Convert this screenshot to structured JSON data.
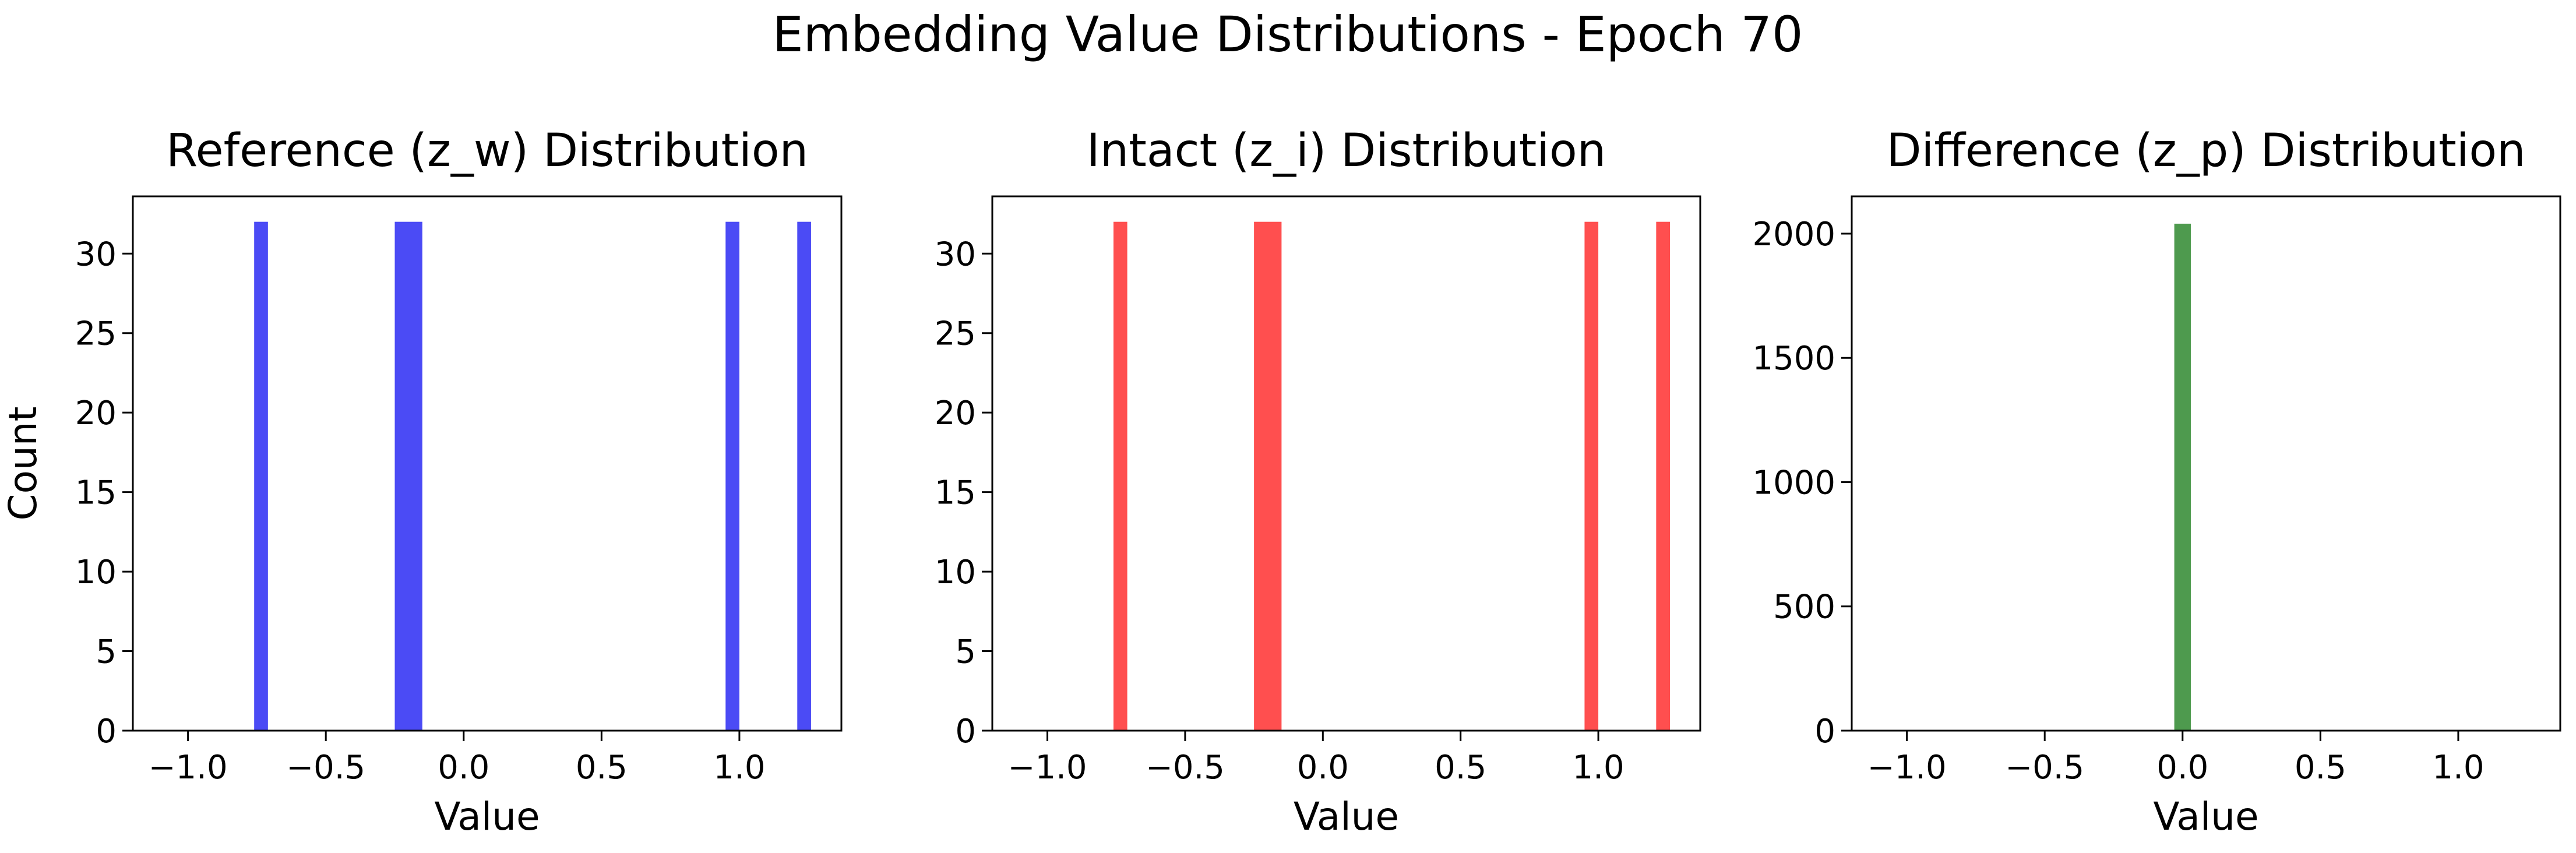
{
  "figure": {
    "suptitle": "Embedding Value Distributions - Epoch 70"
  },
  "chart_data": [
    {
      "type": "bar",
      "title": "Reference (z_w) Distribution",
      "xlabel": "Value",
      "ylabel": "Count",
      "xlim": [
        -1.2,
        1.37
      ],
      "ylim": [
        0,
        33.6
      ],
      "xticks": [
        -1.0,
        -0.5,
        0.0,
        0.5,
        1.0
      ],
      "xtick_labels": [
        "−1.0",
        "−0.5",
        "0.0",
        "0.5",
        "1.0"
      ],
      "yticks": [
        0,
        5,
        10,
        15,
        20,
        25,
        30
      ],
      "ytick_labels": [
        "0",
        "5",
        "10",
        "15",
        "20",
        "25",
        "30"
      ],
      "color": "#4b4bf5",
      "grid": false,
      "series": [
        {
          "bins": [
            {
              "x0": -0.76,
              "x1": -0.71,
              "count": 32
            },
            {
              "x0": -0.25,
              "x1": -0.15,
              "count": 32
            },
            {
              "x0": 0.95,
              "x1": 1.0,
              "count": 32
            },
            {
              "x0": 1.21,
              "x1": 1.26,
              "count": 32
            }
          ]
        }
      ]
    },
    {
      "type": "bar",
      "title": "Intact (z_i) Distribution",
      "xlabel": "Value",
      "ylabel": "",
      "xlim": [
        -1.2,
        1.37
      ],
      "ylim": [
        0,
        33.6
      ],
      "xticks": [
        -1.0,
        -0.5,
        0.0,
        0.5,
        1.0
      ],
      "xtick_labels": [
        "−1.0",
        "−0.5",
        "0.0",
        "0.5",
        "1.0"
      ],
      "yticks": [
        0,
        5,
        10,
        15,
        20,
        25,
        30
      ],
      "ytick_labels": [
        "0",
        "5",
        "10",
        "15",
        "20",
        "25",
        "30"
      ],
      "color": "#ff4f4f",
      "grid": false,
      "series": [
        {
          "bins": [
            {
              "x0": -0.76,
              "x1": -0.71,
              "count": 32
            },
            {
              "x0": -0.25,
              "x1": -0.15,
              "count": 32
            },
            {
              "x0": 0.95,
              "x1": 1.0,
              "count": 32
            },
            {
              "x0": 1.21,
              "x1": 1.26,
              "count": 32
            }
          ]
        }
      ]
    },
    {
      "type": "bar",
      "title": "Difference (z_p) Distribution",
      "xlabel": "Value",
      "ylabel": "",
      "xlim": [
        -1.2,
        1.37
      ],
      "ylim": [
        0,
        2150
      ],
      "xticks": [
        -1.0,
        -0.5,
        0.0,
        0.5,
        1.0
      ],
      "xtick_labels": [
        "−1.0",
        "−0.5",
        "0.0",
        "0.5",
        "1.0"
      ],
      "yticks": [
        0,
        500,
        1000,
        1500,
        2000
      ],
      "ytick_labels": [
        "0",
        "500",
        "1000",
        "1500",
        "2000"
      ],
      "color": "#4e9a4e",
      "grid": false,
      "series": [
        {
          "bins": [
            {
              "x0": -0.03,
              "x1": 0.03,
              "count": 2040
            }
          ]
        }
      ]
    }
  ]
}
